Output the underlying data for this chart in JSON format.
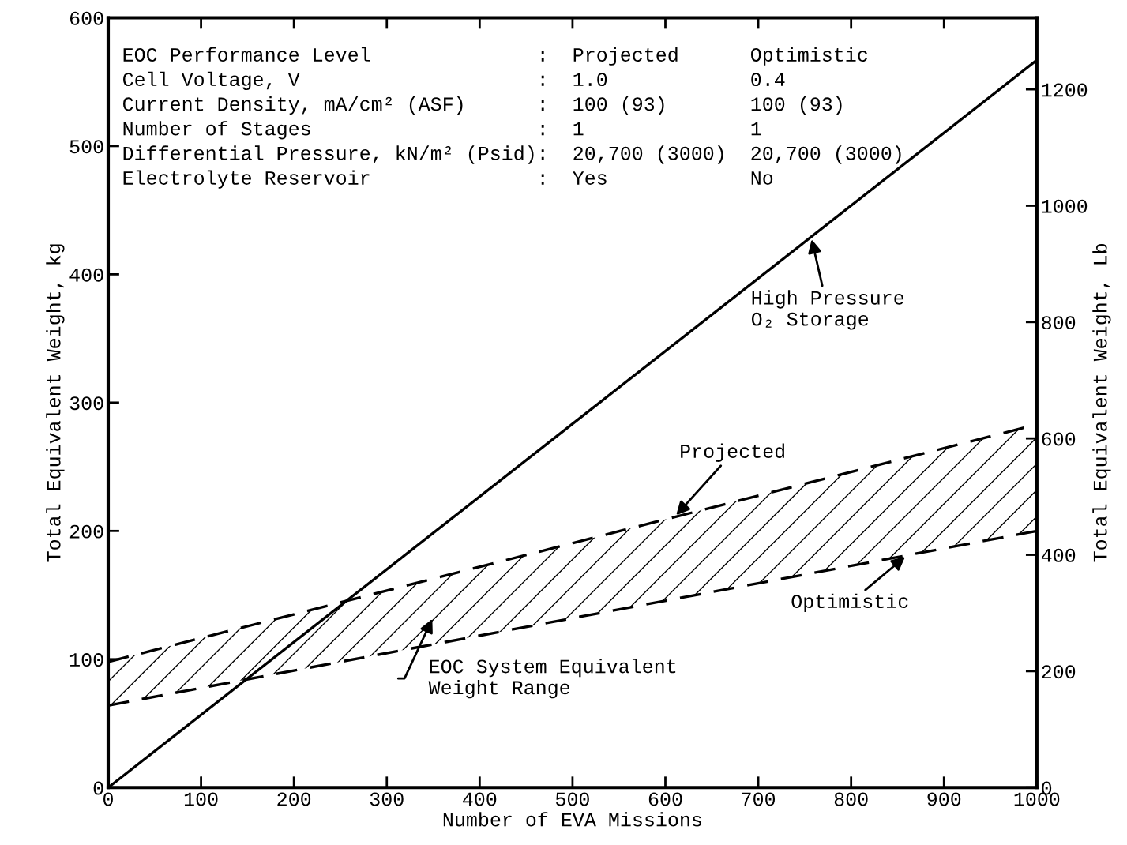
{
  "chart_data": {
    "type": "line",
    "xlabel": "Number of EVA Missions",
    "ylabel": "Total Equivalent Weight, kg",
    "y2label": "Total Equivalent Weight, Lb",
    "xlim": [
      0,
      1000
    ],
    "xticks": [
      0,
      100,
      200,
      300,
      400,
      500,
      600,
      700,
      800,
      900,
      1000
    ],
    "ylim": [
      0,
      600
    ],
    "yticks": [
      0,
      100,
      200,
      300,
      400,
      500,
      600
    ],
    "y2lim": [
      0,
      1323
    ],
    "y2ticks": [
      0,
      200,
      400,
      600,
      800,
      1000,
      1200
    ],
    "grid": false,
    "x": [
      0,
      1000
    ],
    "series": [
      {
        "values": [
          0,
          567
        ],
        "color": "#000000",
        "line_style": "solid"
      },
      {
        "values": [
          98,
          283
        ],
        "color": "#000000",
        "line_style": "dashed"
      },
      {
        "values": [
          64,
          200
        ],
        "color": "#000000",
        "line_style": "dashed"
      }
    ],
    "annotations": [
      "EOC Performance Level              :  Projected      Optimistic",
      "Cell Voltage, V                    :  1.0            0.4",
      "Current Density, mA/cm² (ASF)      :  100 (93)       100 (93)",
      "Number of Stages                   :  1              1",
      "Differential Pressure, kN/m² (Psid):  20,700 (3000)  20,700 (3000)",
      "Electrolyte Reservoir              :  Yes            No",
      {
        "text": "High Pressure\nO₂ Storage",
        "x": 757,
        "y": 429
      },
      {
        "text": "Projected",
        "x": 610,
        "y": 211
      },
      {
        "text": "Optimistic",
        "x": 860,
        "y": 181
      },
      "EOC System Equivalent\nWeight Range"
    ]
  }
}
